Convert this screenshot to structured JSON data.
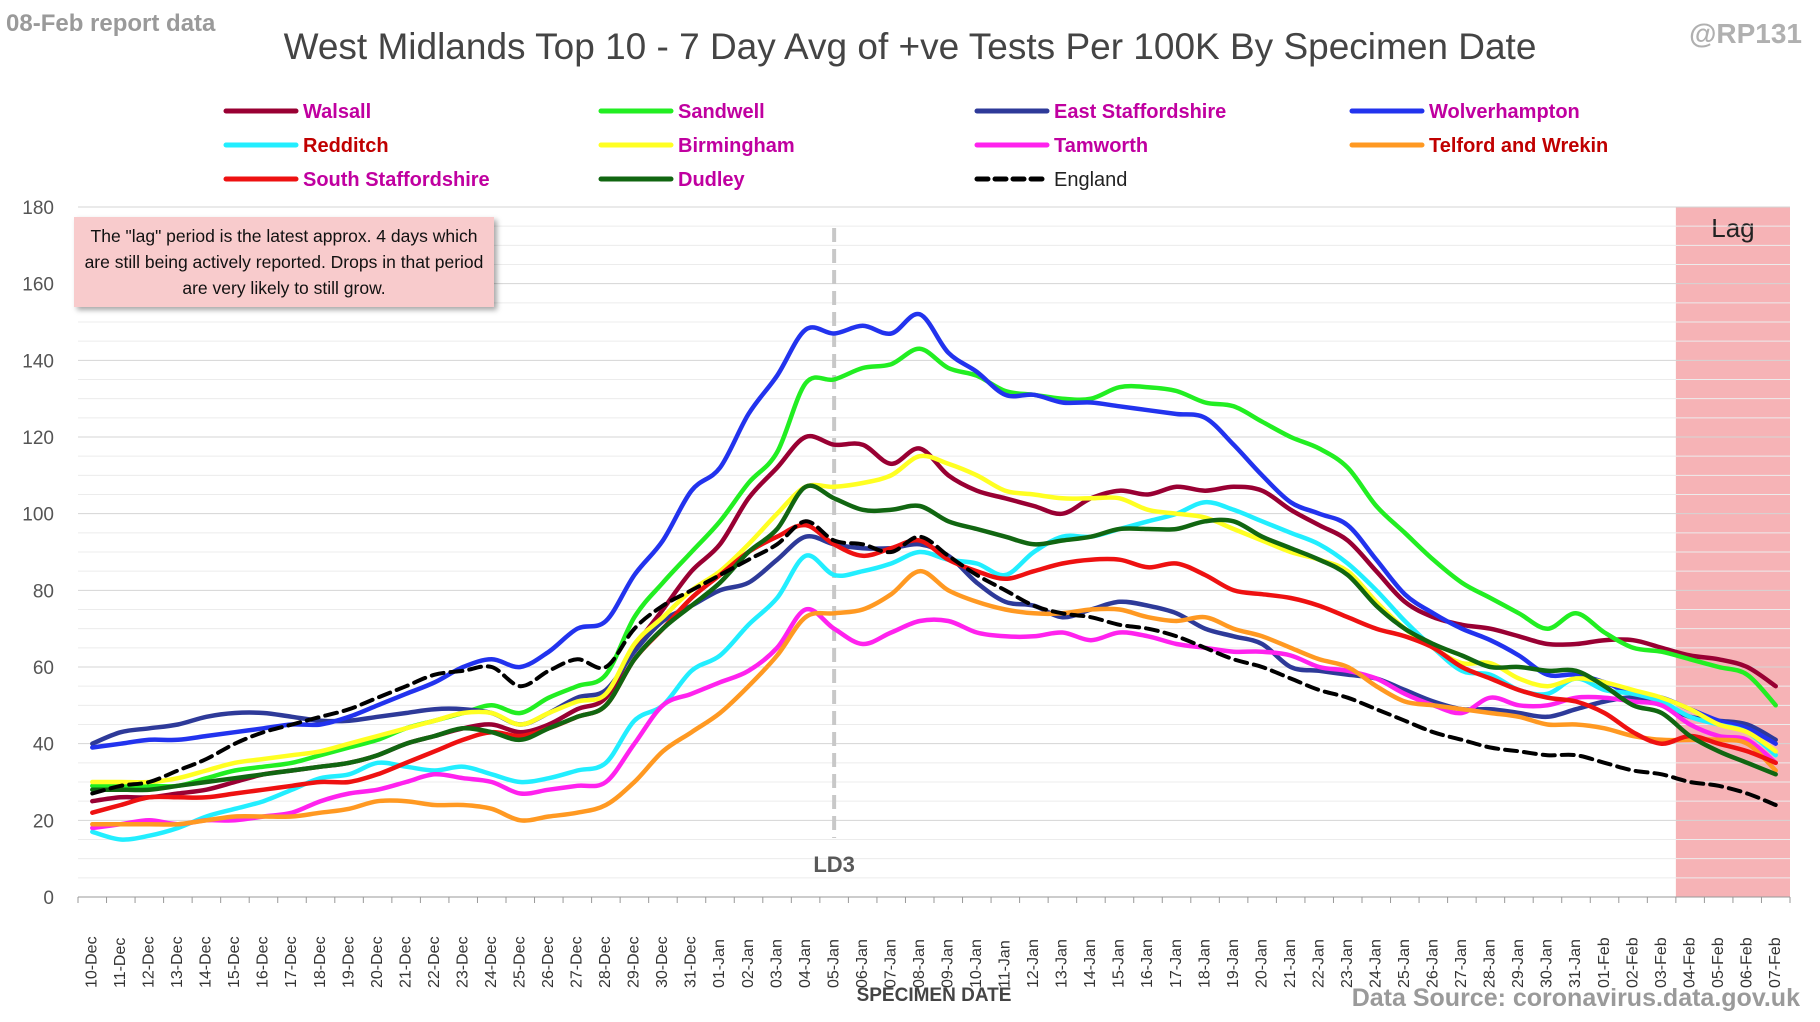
{
  "header": {
    "report_label": "08-Feb report data",
    "handle": "@RP131",
    "source": "Data Source: coronavirus.data.gov.uk"
  },
  "note": {
    "text": "The \"lag\" period is the latest approx. 4 days which are still being actively reported.  Drops in that period are very likely to still grow."
  },
  "chart_data": {
    "type": "line",
    "title": "West Midlands Top 10 - 7 Day Avg of +ve Tests Per 100K By Specimen Date",
    "xlabel": "SPECIMEN DATE",
    "ylabel": "",
    "ylim": [
      0,
      180
    ],
    "yticks": [
      0,
      20,
      40,
      60,
      80,
      100,
      120,
      140,
      160,
      180
    ],
    "grid": true,
    "legend_position": "top",
    "categories": [
      "10-Dec",
      "11-Dec",
      "12-Dec",
      "13-Dec",
      "14-Dec",
      "15-Dec",
      "16-Dec",
      "17-Dec",
      "18-Dec",
      "19-Dec",
      "20-Dec",
      "21-Dec",
      "22-Dec",
      "23-Dec",
      "24-Dec",
      "25-Dec",
      "26-Dec",
      "27-Dec",
      "28-Dec",
      "29-Dec",
      "30-Dec",
      "31-Dec",
      "01-Jan",
      "02-Jan",
      "03-Jan",
      "04-Jan",
      "05-Jan",
      "06-Jan",
      "07-Jan",
      "08-Jan",
      "09-Jan",
      "10-Jan",
      "11-Jan",
      "12-Jan",
      "13-Jan",
      "14-Jan",
      "15-Jan",
      "16-Jan",
      "17-Jan",
      "18-Jan",
      "19-Jan",
      "20-Jan",
      "21-Jan",
      "22-Jan",
      "23-Jan",
      "24-Jan",
      "25-Jan",
      "26-Jan",
      "27-Jan",
      "28-Jan",
      "29-Jan",
      "30-Jan",
      "31-Jan",
      "01-Feb",
      "02-Feb",
      "03-Feb",
      "04-Feb",
      "05-Feb",
      "06-Feb",
      "07-Feb"
    ],
    "annotations": [
      {
        "label": "LD3",
        "at": "05-Jan",
        "style": "dashed-vertical"
      },
      {
        "label": "Lag",
        "from": "04-Feb",
        "to": "07-Feb",
        "style": "shaded-band",
        "color": "#f4a6a9"
      }
    ],
    "series": [
      {
        "name": "Walsall",
        "color": "#990033",
        "label_color": "#c000a0",
        "values": [
          25,
          26,
          26,
          27,
          28,
          30,
          32,
          33,
          34,
          35,
          37,
          40,
          42,
          44,
          45,
          43,
          45,
          49,
          52,
          65,
          75,
          85,
          92,
          104,
          112,
          120,
          118,
          118,
          113,
          117,
          110,
          106,
          104,
          102,
          100,
          104,
          106,
          105,
          107,
          106,
          107,
          106,
          101,
          97,
          93,
          85,
          77,
          73,
          71,
          70,
          68,
          66,
          66,
          67,
          67,
          65,
          63,
          62,
          60,
          55
        ]
      },
      {
        "name": "Sandwell",
        "color": "#22ee22",
        "label_color": "#c000a0",
        "values": [
          29,
          29,
          29,
          29,
          31,
          33,
          34,
          35,
          37,
          39,
          41,
          44,
          46,
          48,
          50,
          48,
          52,
          55,
          58,
          73,
          82,
          90,
          98,
          108,
          116,
          134,
          135,
          138,
          139,
          143,
          138,
          136,
          132,
          131,
          130,
          130,
          133,
          133,
          132,
          129,
          128,
          124,
          120,
          117,
          112,
          102,
          95,
          88,
          82,
          78,
          74,
          70,
          74,
          69,
          65,
          64,
          62,
          60,
          58,
          50
        ]
      },
      {
        "name": "East Staffordshire",
        "color": "#2e3a99",
        "label_color": "#c000a0",
        "values": [
          40,
          43,
          44,
          45,
          47,
          48,
          48,
          47,
          46,
          46,
          47,
          48,
          49,
          49,
          48,
          45,
          48,
          52,
          54,
          64,
          72,
          76,
          80,
          82,
          88,
          94,
          92,
          91,
          91,
          92,
          89,
          82,
          77,
          76,
          73,
          75,
          77,
          76,
          74,
          70,
          68,
          66,
          60,
          59,
          58,
          57,
          54,
          51,
          49,
          49,
          48,
          47,
          49,
          51,
          52,
          50,
          47,
          46,
          45,
          41
        ]
      },
      {
        "name": "Wolverhampton",
        "color": "#2233ee",
        "label_color": "#c000a0",
        "values": [
          39,
          40,
          41,
          41,
          42,
          43,
          44,
          45,
          45,
          47,
          50,
          53,
          56,
          60,
          62,
          60,
          64,
          70,
          72,
          84,
          93,
          106,
          112,
          126,
          136,
          148,
          147,
          149,
          147,
          152,
          142,
          137,
          131,
          131,
          129,
          129,
          128,
          127,
          126,
          125,
          118,
          110,
          103,
          100,
          97,
          88,
          79,
          74,
          70,
          67,
          63,
          58,
          58,
          56,
          53,
          52,
          49,
          46,
          44,
          40
        ]
      },
      {
        "name": "Redditch",
        "color": "#22eeff",
        "label_color": "#c00000",
        "values": [
          17,
          15,
          16,
          18,
          21,
          23,
          25,
          28,
          31,
          32,
          35,
          34,
          33,
          34,
          32,
          30,
          31,
          33,
          35,
          46,
          50,
          59,
          63,
          71,
          78,
          89,
          84,
          85,
          87,
          90,
          88,
          87,
          84,
          90,
          94,
          94,
          96,
          98,
          100,
          103,
          101,
          98,
          95,
          92,
          87,
          80,
          72,
          65,
          59,
          58,
          54,
          53,
          57,
          54,
          53,
          51,
          47,
          45,
          43,
          37
        ]
      },
      {
        "name": "Birmingham",
        "color": "#ffff22",
        "label_color": "#c000a0",
        "values": [
          30,
          30,
          30,
          31,
          33,
          35,
          36,
          37,
          38,
          40,
          42,
          44,
          46,
          48,
          48,
          45,
          48,
          51,
          53,
          66,
          73,
          80,
          85,
          92,
          100,
          107,
          107,
          108,
          110,
          115,
          113,
          110,
          106,
          105,
          104,
          104,
          104,
          101,
          100,
          99,
          96,
          93,
          90,
          88,
          85,
          77,
          70,
          65,
          61,
          61,
          57,
          55,
          57,
          56,
          54,
          52,
          49,
          45,
          43,
          38
        ]
      },
      {
        "name": "Tamworth",
        "color": "#ff22ee",
        "label_color": "#c000a0",
        "values": [
          18,
          19,
          20,
          19,
          20,
          20,
          21,
          22,
          25,
          27,
          28,
          30,
          32,
          31,
          30,
          27,
          28,
          29,
          30,
          40,
          50,
          53,
          56,
          59,
          65,
          75,
          70,
          66,
          69,
          72,
          72,
          69,
          68,
          68,
          69,
          67,
          69,
          68,
          66,
          65,
          64,
          64,
          63,
          60,
          59,
          57,
          53,
          50,
          48,
          52,
          50,
          50,
          52,
          52,
          51,
          50,
          45,
          42,
          41,
          35
        ]
      },
      {
        "name": "Telford and Wrekin",
        "color": "#ff9922",
        "label_color": "#c00000",
        "values": [
          19,
          19,
          19,
          19,
          20,
          21,
          21,
          21,
          22,
          23,
          25,
          25,
          24,
          24,
          23,
          20,
          21,
          22,
          24,
          30,
          38,
          43,
          48,
          55,
          63,
          73,
          74,
          75,
          79,
          85,
          80,
          77,
          75,
          74,
          74,
          75,
          75,
          73,
          72,
          73,
          70,
          68,
          65,
          62,
          60,
          55,
          51,
          50,
          49,
          48,
          47,
          45,
          45,
          44,
          42,
          41,
          41,
          41,
          40,
          33
        ]
      },
      {
        "name": "South Staffordshire",
        "color": "#ee1111",
        "label_color": "#c000a0",
        "values": [
          22,
          24,
          26,
          26,
          26,
          27,
          28,
          29,
          30,
          30,
          32,
          35,
          38,
          41,
          43,
          42,
          44,
          47,
          50,
          62,
          70,
          78,
          84,
          90,
          94,
          97,
          92,
          89,
          91,
          93,
          88,
          85,
          83,
          85,
          87,
          88,
          88,
          86,
          87,
          84,
          80,
          79,
          78,
          76,
          73,
          70,
          68,
          65,
          60,
          57,
          54,
          52,
          51,
          48,
          43,
          40,
          42,
          40,
          38,
          35
        ]
      },
      {
        "name": "Dudley",
        "color": "#116611",
        "label_color": "#c000a0",
        "values": [
          28,
          28,
          28,
          29,
          30,
          31,
          32,
          33,
          34,
          35,
          37,
          40,
          42,
          44,
          43,
          41,
          44,
          47,
          50,
          62,
          70,
          76,
          82,
          90,
          96,
          107,
          104,
          101,
          101,
          102,
          98,
          96,
          94,
          92,
          93,
          94,
          96,
          96,
          96,
          98,
          98,
          94,
          91,
          88,
          84,
          76,
          70,
          66,
          63,
          60,
          60,
          59,
          59,
          55,
          50,
          48,
          42,
          38,
          35,
          32
        ]
      },
      {
        "name": "England",
        "color": "#000000",
        "label_color": "#222222",
        "dashed": true,
        "values": [
          27,
          29,
          30,
          33,
          36,
          40,
          43,
          45,
          47,
          49,
          52,
          55,
          58,
          59,
          60,
          55,
          59,
          62,
          60,
          70,
          76,
          80,
          84,
          88,
          92,
          98,
          93,
          92,
          90,
          94,
          89,
          84,
          80,
          76,
          74,
          73,
          71,
          70,
          68,
          65,
          62,
          60,
          57,
          54,
          52,
          49,
          46,
          43,
          41,
          39,
          38,
          37,
          37,
          35,
          33,
          32,
          30,
          29,
          27,
          24
        ]
      }
    ]
  }
}
